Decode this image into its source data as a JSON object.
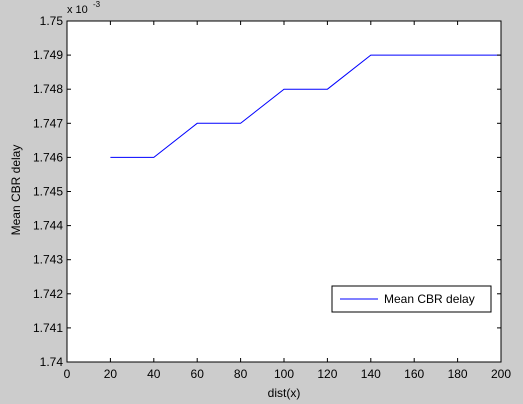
{
  "figure": {
    "background": "#cccccc",
    "axes_background": "#ffffff",
    "line_color": "#0000ff"
  },
  "chart_data": {
    "type": "line",
    "title": "",
    "xlabel": "dist(x)",
    "ylabel": "Mean CBR delay",
    "y_exponent_base": "x 10",
    "y_exponent_power": "-3",
    "xlim": [
      0,
      200
    ],
    "ylim": [
      1.74,
      1.75
    ],
    "xticks": [
      0,
      20,
      40,
      60,
      80,
      100,
      120,
      140,
      160,
      180,
      200
    ],
    "xtick_labels": [
      "0",
      "20",
      "40",
      "60",
      "80",
      "100",
      "120",
      "140",
      "160",
      "180",
      "200"
    ],
    "yticks": [
      1.74,
      1.741,
      1.742,
      1.743,
      1.744,
      1.745,
      1.746,
      1.747,
      1.748,
      1.749,
      1.75
    ],
    "ytick_labels": [
      "1.74",
      "1.741",
      "1.742",
      "1.743",
      "1.744",
      "1.745",
      "1.746",
      "1.747",
      "1.748",
      "1.749",
      "1.75"
    ],
    "grid": false,
    "legend_location": "lower-right",
    "series": [
      {
        "name": "Mean CBR delay",
        "color": "#0000ff",
        "x": [
          20,
          40,
          60,
          80,
          100,
          120,
          140,
          160,
          180,
          200
        ],
        "y": [
          1.746,
          1.746,
          1.747,
          1.747,
          1.748,
          1.748,
          1.749,
          1.749,
          1.749,
          1.749
        ]
      }
    ]
  }
}
